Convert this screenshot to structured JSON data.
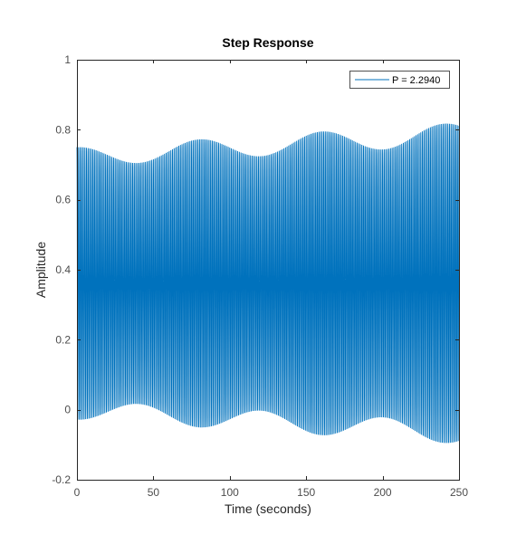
{
  "chart_data": {
    "type": "line",
    "title": "Step Response",
    "xlabel": "Time (seconds)",
    "ylabel": "Amplitude",
    "xlim": [
      0,
      250
    ],
    "ylim": [
      -0.2,
      1
    ],
    "xticks": [
      0,
      50,
      100,
      150,
      200,
      250
    ],
    "xtick_labels": [
      "0",
      "50",
      "100",
      "150",
      "200",
      "250"
    ],
    "yticks": [
      -0.2,
      0,
      0.2,
      0.4,
      0.6,
      0.8,
      1
    ],
    "ytick_labels": [
      "-0.2",
      "0",
      "0.2",
      "0.4",
      "0.6",
      "0.8",
      "1"
    ],
    "grid": false,
    "legend_position": "top-right",
    "series": [
      {
        "name": "P = 2.2940",
        "color": "#0072bd",
        "waveform": "sustained oscillation with slowly growing amplitude",
        "center": 0.355,
        "upper_envelope": {
          "x": [
            0,
            250
          ],
          "y": [
            0.75,
            0.82
          ]
        },
        "lower_envelope": {
          "x": [
            0,
            250
          ],
          "y": [
            -0.03,
            -0.1
          ]
        },
        "approx_cycles": 240
      }
    ]
  }
}
